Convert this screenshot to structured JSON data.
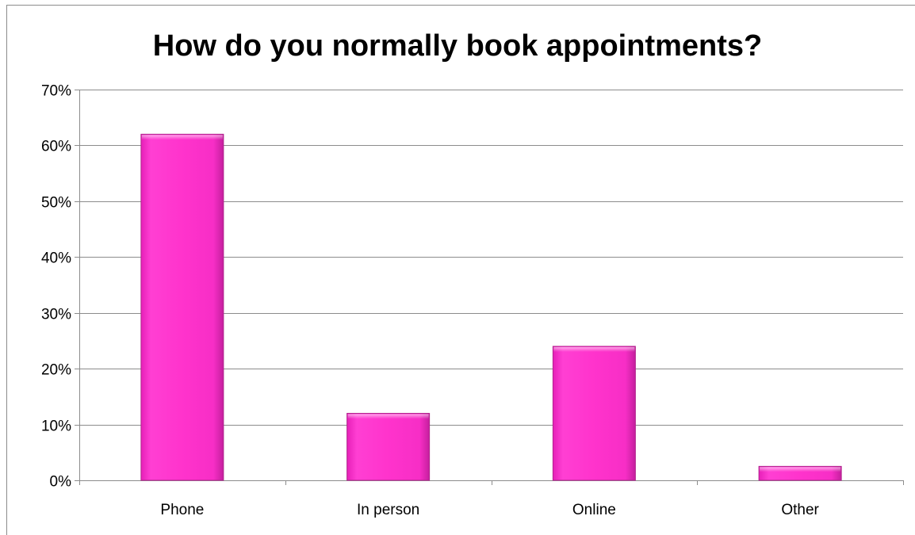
{
  "chart_data": {
    "type": "bar",
    "title": "How do you normally book appointments?",
    "categories": [
      "Phone",
      "In person",
      "Online",
      "Other"
    ],
    "values": [
      62,
      12,
      24,
      2.5
    ],
    "value_unit": "%",
    "ylim": [
      0,
      70
    ],
    "yticks": [
      0,
      10,
      20,
      30,
      40,
      50,
      60,
      70
    ],
    "ytick_labels": [
      "0%",
      "10%",
      "20%",
      "30%",
      "40%",
      "50%",
      "60%",
      "70%"
    ],
    "grid": true,
    "legend": false,
    "bar_color": "#ff33cc",
    "bar_edge_color": "#b0228c",
    "grid_color": "#8c8c8c"
  }
}
